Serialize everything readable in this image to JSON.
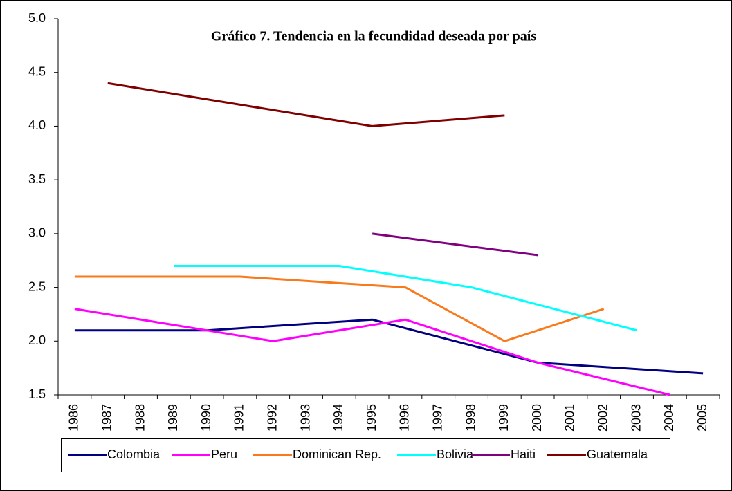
{
  "chart_data": {
    "type": "line",
    "title": "Gráfico 7. Tendencia en la fecundidad deseada por país",
    "categories": [
      "1986",
      "1987",
      "1988",
      "1989",
      "1990",
      "1991",
      "1992",
      "1993",
      "1994",
      "1995",
      "1996",
      "1997",
      "1998",
      "1999",
      "2000",
      "2001",
      "2002",
      "2003",
      "2004",
      "2005"
    ],
    "span_gaps": true,
    "grid": false,
    "legend": "bottom",
    "ylim": [
      1.5,
      5.0
    ],
    "yticks": [
      1.5,
      {
        "value": 2.0,
        "label": "2.0"
      },
      2.5,
      {
        "value": 3.0,
        "label": "3.0"
      },
      3.5,
      {
        "value": 4.0,
        "label": "4.0"
      },
      4.5,
      {
        "value": 5.0,
        "label": "5.0"
      }
    ],
    "series": [
      {
        "name": "Colombia",
        "color": "#000080",
        "values": [
          2.1,
          null,
          null,
          null,
          2.1,
          null,
          null,
          null,
          null,
          2.2,
          null,
          null,
          null,
          null,
          1.8,
          null,
          null,
          null,
          null,
          1.7
        ]
      },
      {
        "name": "Peru",
        "color": "#ff00ff",
        "values": [
          2.3,
          null,
          null,
          null,
          null,
          null,
          2.0,
          null,
          null,
          null,
          2.2,
          null,
          null,
          null,
          1.8,
          null,
          null,
          null,
          1.5,
          null
        ]
      },
      {
        "name": "Dominican Rep.",
        "color": "#f97a1c",
        "values": [
          2.6,
          null,
          null,
          null,
          null,
          2.6,
          null,
          null,
          null,
          null,
          2.5,
          null,
          null,
          2.0,
          null,
          null,
          2.3,
          null,
          null,
          null
        ]
      },
      {
        "name": "Bolivia",
        "color": "#00ffff",
        "values": [
          null,
          null,
          null,
          2.7,
          null,
          null,
          null,
          null,
          2.7,
          null,
          null,
          null,
          2.5,
          null,
          null,
          null,
          null,
          2.1,
          null,
          null
        ]
      },
      {
        "name": "Haiti",
        "color": "#800080",
        "values": [
          null,
          null,
          null,
          null,
          null,
          null,
          null,
          null,
          null,
          3.0,
          null,
          null,
          null,
          null,
          2.8,
          null,
          null,
          null,
          null,
          null
        ]
      },
      {
        "name": "Guatemala",
        "color": "#800000",
        "values": [
          null,
          4.4,
          null,
          null,
          null,
          null,
          null,
          null,
          null,
          4.0,
          null,
          null,
          null,
          4.1,
          null,
          null,
          null,
          null,
          null,
          null
        ]
      }
    ]
  }
}
